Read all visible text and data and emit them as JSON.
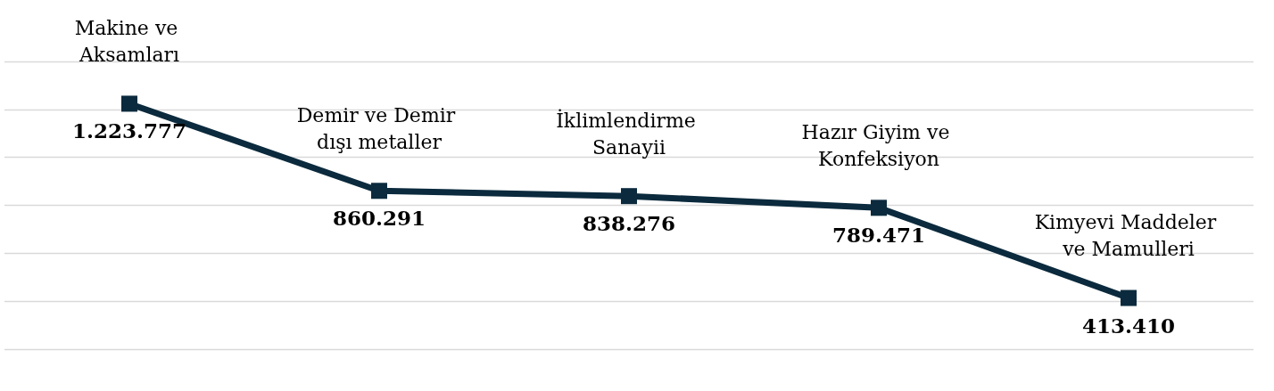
{
  "chart_data": {
    "type": "line",
    "categories": [
      "Makine ve Aksamları",
      "Demir ve Demir dışı metaller",
      "İklimlendirme Sanayii",
      "Hazır Giyim ve Konfeksiyon",
      "Kimyevi Maddeler ve Mamulleri"
    ],
    "series": [
      {
        "color": "#0b2a3d",
        "values": [
          1223777,
          860291,
          838276,
          789471,
          413410
        ],
        "value_labels": [
          "1.223.777",
          "860.291",
          "838.276",
          "789.471",
          "413.410"
        ]
      }
    ],
    "ylim": [
      200000,
      1400000
    ],
    "yticks": [
      {
        "value": 200000,
        "label": null
      },
      {
        "value": 400000,
        "label": null
      },
      {
        "value": 600000,
        "label": null
      },
      {
        "value": 800000,
        "label": null
      },
      {
        "value": 1000000,
        "label": null
      },
      {
        "value": 1200000,
        "label": null
      },
      {
        "value": 1400000,
        "label": null
      }
    ],
    "grid": "y",
    "marker": "square",
    "line_style": "solid",
    "tick_labels": "x"
  }
}
